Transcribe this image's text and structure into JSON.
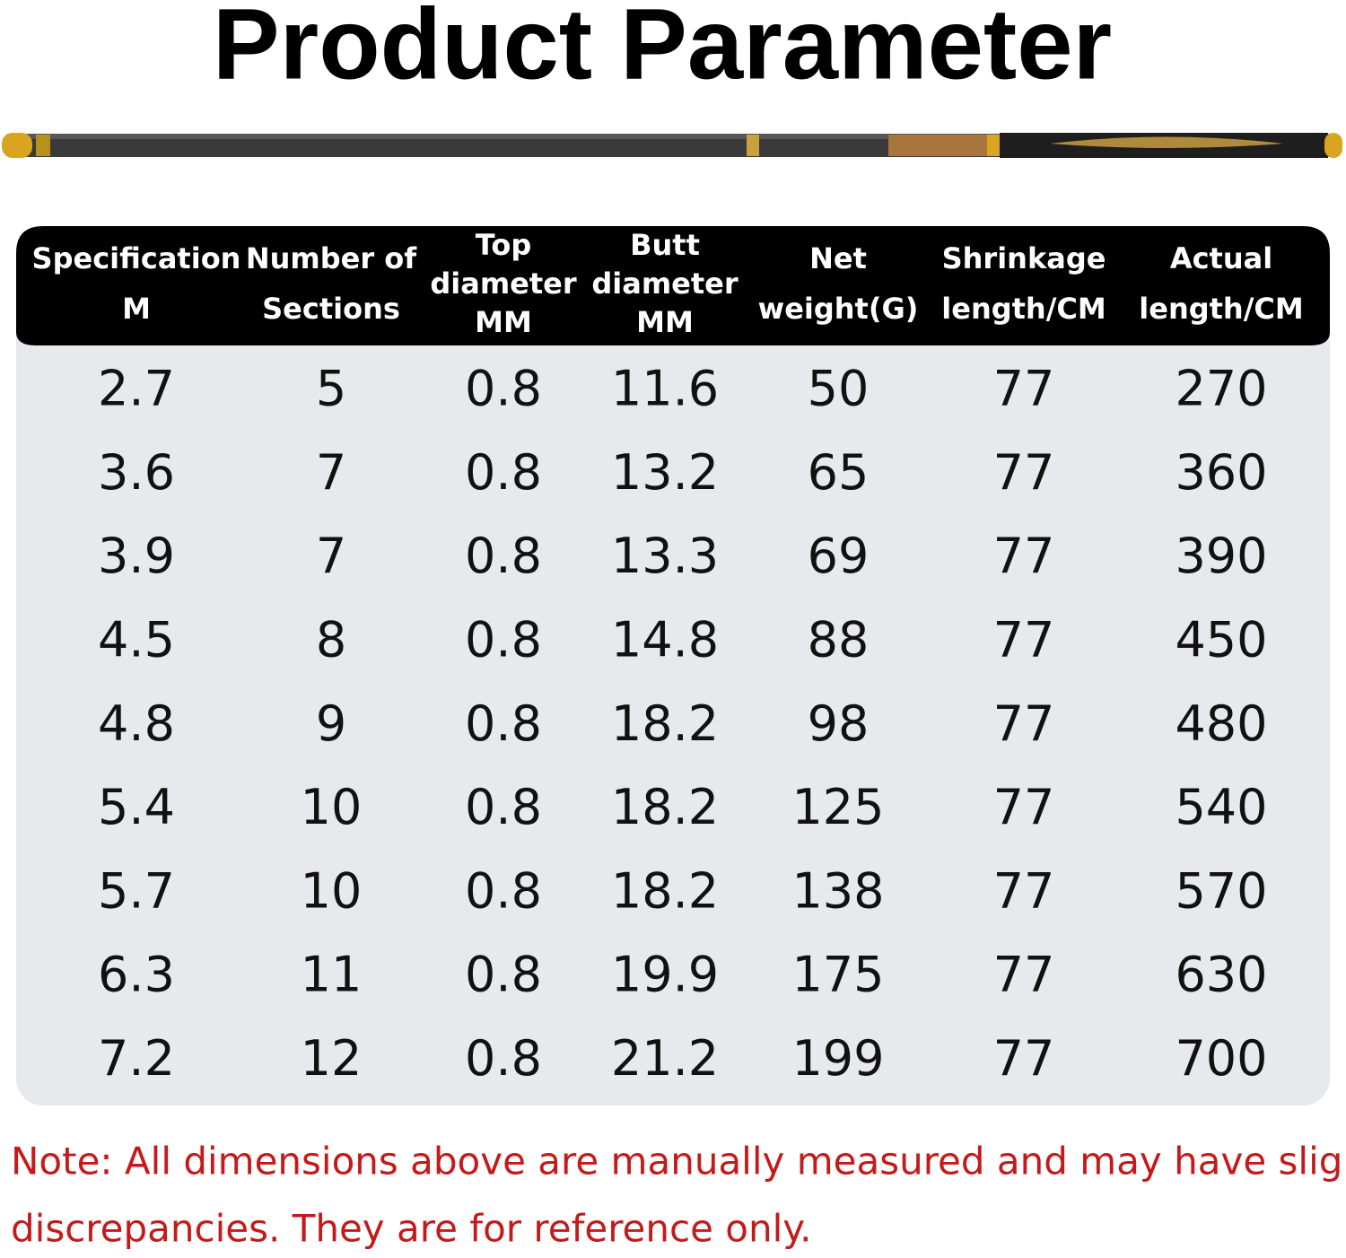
{
  "title": "Product Parameter",
  "table": {
    "header": [
      [
        "Specification",
        "M"
      ],
      [
        "Number of",
        "Sections"
      ],
      [
        "Top",
        "diameter",
        "MM"
      ],
      [
        "Butt",
        "diameter",
        "MM"
      ],
      [
        "Net",
        "weight(G)"
      ],
      [
        "Shrinkage",
        "length/CM"
      ],
      [
        "Actual",
        "length/CM"
      ]
    ],
    "rows": [
      [
        "2.7",
        "5",
        "0.8",
        "11.6",
        "50",
        "77",
        "270"
      ],
      [
        "3.6",
        "7",
        "0.8",
        "13.2",
        "65",
        "77",
        "360"
      ],
      [
        "3.9",
        "7",
        "0.8",
        "13.3",
        "69",
        "77",
        "390"
      ],
      [
        "4.5",
        "8",
        "0.8",
        "14.8",
        "88",
        "77",
        "450"
      ],
      [
        "4.8",
        "9",
        "0.8",
        "18.2",
        "98",
        "77",
        "480"
      ],
      [
        "5.4",
        "10",
        "0.8",
        "18.2",
        "125",
        "77",
        "540"
      ],
      [
        "5.7",
        "10",
        "0.8",
        "18.2",
        "138",
        "77",
        "570"
      ],
      [
        "6.3",
        "11",
        "0.8",
        "19.9",
        "175",
        "77",
        "630"
      ],
      [
        "7.2",
        "12",
        "0.8",
        "21.2",
        "199",
        "77",
        "700"
      ]
    ]
  },
  "note": [
    "Note: All dimensions above are manually measured and may have slight",
    "discrepancies. They are for reference only."
  ]
}
